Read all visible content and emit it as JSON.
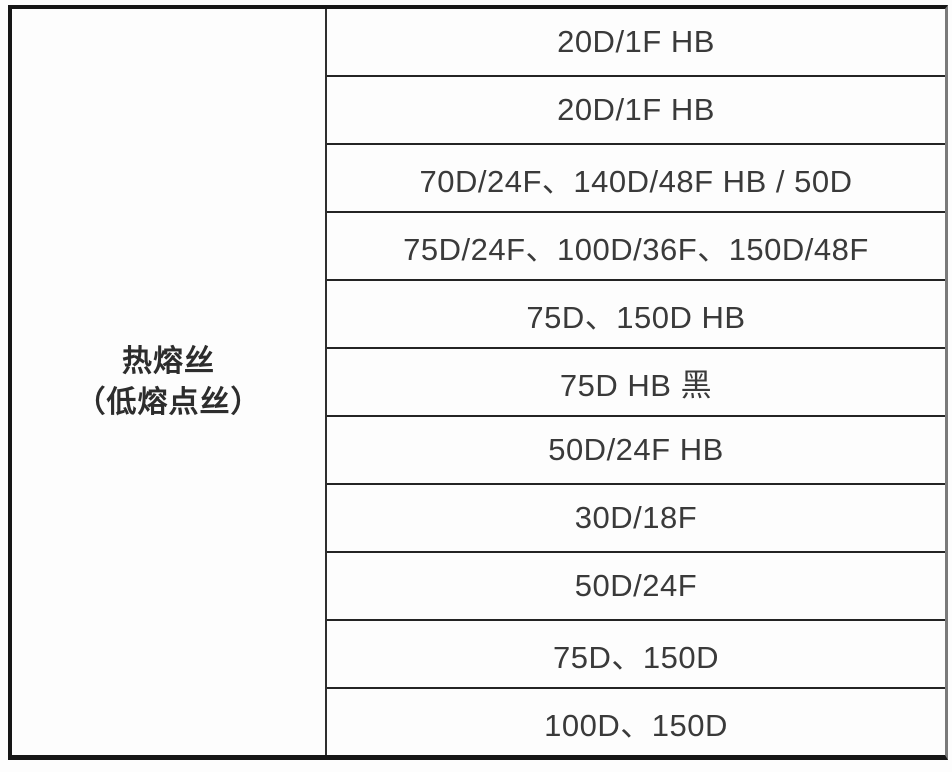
{
  "table": {
    "category": {
      "line1": "热熔丝",
      "line2": "（低熔点丝）"
    },
    "rows": [
      "20D/1F HB",
      "20D/1F HB",
      "70D/24F、140D/48F HB / 50D",
      "75D/24F、100D/36F、150D/48F",
      "75D、150D HB",
      "75D HB 黑",
      "50D/24F HB",
      "30D/18F",
      "50D/24F",
      "75D、150D",
      "100D、150D"
    ],
    "colors": {
      "outer_border": "#161616",
      "inner_line": "#242424",
      "right_border": "#7a7a7a",
      "background": "#fdfdfd",
      "text": "#3a3a3a"
    }
  }
}
